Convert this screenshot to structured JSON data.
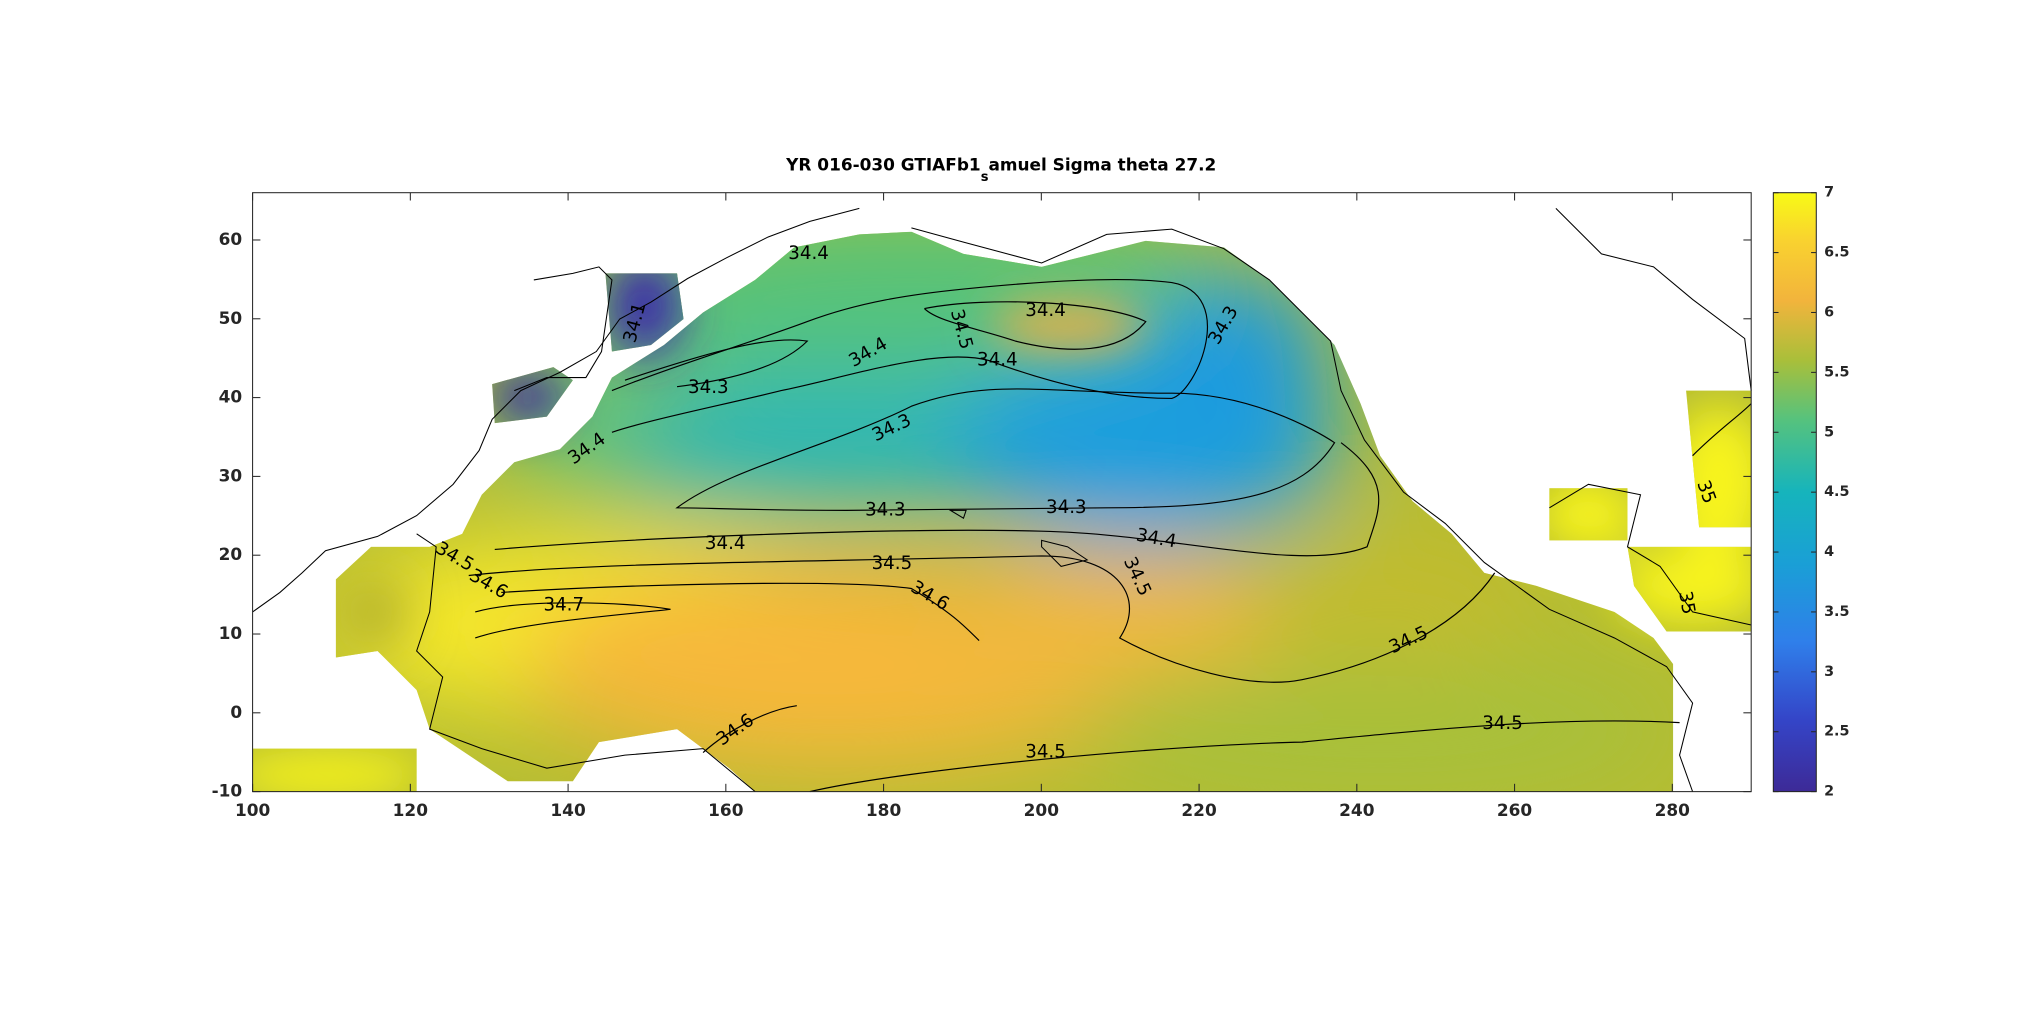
{
  "chart_data": {
    "type": "map",
    "title_parts": [
      "YR 016-030 GTIAFb1",
      "s",
      "amuel Sigma theta 27.2"
    ],
    "xlim": [
      100,
      290
    ],
    "xticks": [
      100,
      120,
      140,
      160,
      180,
      200,
      220,
      240,
      260,
      280
    ],
    "ylim": [
      -10,
      66
    ],
    "yticks": [
      -10,
      0,
      10,
      20,
      30,
      40,
      50,
      60
    ],
    "colorbar": {
      "clim": [
        2,
        7
      ],
      "ticks": [
        2,
        2.5,
        3,
        3.5,
        4,
        4.5,
        5,
        5.5,
        6,
        6.5,
        7
      ]
    },
    "contour_labels": [
      34.4,
      34.1,
      34.5,
      34.4,
      34.3,
      34.4,
      34.4,
      34.3,
      34.3,
      34.4,
      34.3,
      34.3,
      34.4,
      34.4,
      34.5,
      34.6,
      34.5,
      34.5,
      34.7,
      34.6,
      34.5,
      34.6,
      34.5,
      34.5,
      35,
      35
    ]
  }
}
